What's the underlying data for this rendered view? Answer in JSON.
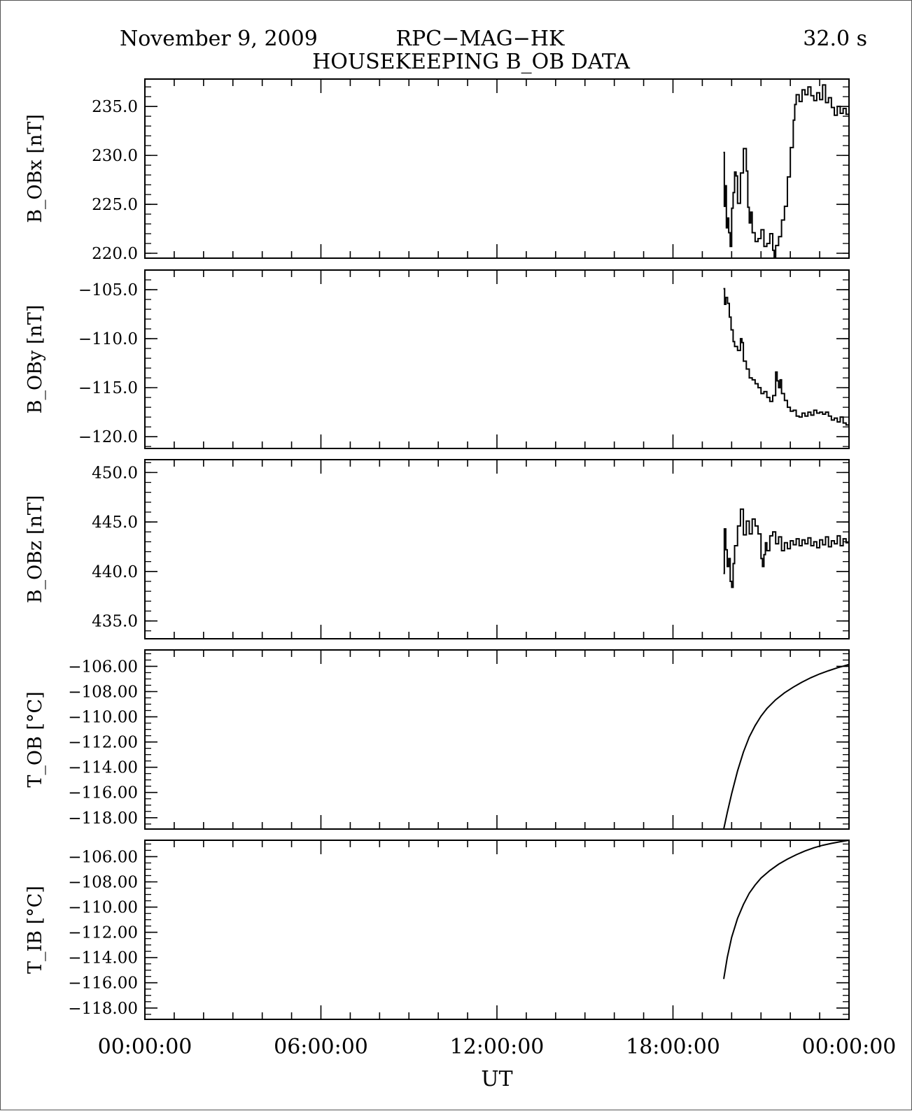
{
  "header": {
    "date": "November 9, 2009",
    "instrument": "RPC−MAG−HK",
    "resolution": "32.0 s",
    "subtitle": "HOUSEKEEPING B_OB DATA"
  },
  "chart_data": {
    "type": "line",
    "xlabel": "UT",
    "x_unit": "hours",
    "xlim": [
      0,
      24
    ],
    "x_ticks": [
      0,
      6,
      12,
      18,
      24
    ],
    "x_tick_labels": [
      "00:00:00",
      "06:00:00",
      "12:00:00",
      "18:00:00",
      "00:00:00"
    ],
    "x_minor_step": 1,
    "grid": false,
    "panels": [
      {
        "name": "bobx",
        "ylabel": "B_OBx [nT]",
        "ylim": [
          219.5,
          237.8
        ],
        "yticks": [
          220,
          225,
          230,
          235
        ],
        "ytick_labels": [
          "220.0",
          "225.0",
          "230.0",
          "235.0"
        ],
        "y_minor_step": 1,
        "style": "step",
        "series": [
          {
            "x": [
              19.72,
              19.75,
              19.78,
              19.82,
              19.86,
              19.9,
              19.95,
              20.0,
              20.05,
              20.1,
              20.15,
              20.2,
              20.3,
              20.4,
              20.5,
              20.55,
              20.6,
              20.65,
              20.7,
              20.8,
              20.9,
              21.0,
              21.1,
              21.2,
              21.3,
              21.4,
              21.45,
              21.5,
              21.6,
              21.7,
              21.8,
              21.9,
              22.0,
              22.1,
              22.15,
              22.2,
              22.3,
              22.4,
              22.5,
              22.6,
              22.7,
              22.8,
              22.9,
              23.0,
              23.1,
              23.2,
              23.3,
              23.4,
              23.5,
              23.6,
              23.7,
              23.8,
              23.9,
              24.0
            ],
            "y": [
              230.3,
              224.8,
              226.9,
              222.6,
              223.6,
              222.1,
              220.7,
              224.6,
              226.2,
              228.3,
              227.9,
              225.1,
              228.2,
              230.7,
              228.4,
              224.7,
              223.1,
              224.2,
              222.1,
              221.2,
              221.5,
              222.4,
              220.7,
              221.0,
              222.0,
              220.3,
              219.6,
              220.8,
              221.7,
              223.4,
              224.8,
              227.8,
              230.8,
              233.6,
              235.2,
              236.2,
              235.5,
              236.7,
              236.2,
              237.0,
              236.1,
              235.6,
              236.4,
              235.7,
              237.2,
              235.4,
              235.9,
              234.9,
              234.1,
              235.0,
              234.3,
              234.8,
              234.2,
              234.9
            ]
          }
        ]
      },
      {
        "name": "boby",
        "ylabel": "B_OBy [nT]",
        "ylim": [
          -121.2,
          -103.0
        ],
        "yticks": [
          -120,
          -115,
          -110,
          -105
        ],
        "ytick_labels": [
          "−120.0",
          "−115.0",
          "−110.0",
          "−105.0"
        ],
        "y_minor_step": 1,
        "style": "step",
        "series": [
          {
            "x": [
              19.72,
              19.76,
              19.8,
              19.86,
              19.92,
              19.98,
              20.05,
              20.1,
              20.2,
              20.3,
              20.35,
              20.4,
              20.5,
              20.6,
              20.7,
              20.8,
              20.9,
              21.0,
              21.1,
              21.2,
              21.3,
              21.4,
              21.5,
              21.55,
              21.6,
              21.65,
              21.7,
              21.8,
              21.9,
              22.0,
              22.1,
              22.2,
              22.3,
              22.4,
              22.5,
              22.6,
              22.7,
              22.8,
              22.9,
              23.0,
              23.1,
              23.2,
              23.3,
              23.4,
              23.5,
              23.6,
              23.7,
              23.8,
              23.9,
              24.0
            ],
            "y": [
              -104.9,
              -106.5,
              -105.8,
              -106.4,
              -107.8,
              -109.1,
              -110.3,
              -110.8,
              -111.2,
              -110.0,
              -110.4,
              -112.3,
              -113.1,
              -114.0,
              -114.2,
              -114.6,
              -115.0,
              -115.6,
              -115.4,
              -116.0,
              -116.4,
              -115.8,
              -113.4,
              -114.3,
              -115.0,
              -114.2,
              -115.6,
              -116.3,
              -117.0,
              -117.4,
              -117.3,
              -117.9,
              -118.0,
              -117.6,
              -117.9,
              -117.5,
              -117.8,
              -117.3,
              -117.6,
              -117.5,
              -117.7,
              -117.5,
              -117.9,
              -118.3,
              -118.1,
              -118.5,
              -118.0,
              -118.6,
              -118.8,
              -119.4
            ]
          }
        ]
      },
      {
        "name": "bobz",
        "ylabel": "B_OBz [nT]",
        "ylim": [
          433.2,
          451.3
        ],
        "yticks": [
          435,
          440,
          445,
          450
        ],
        "ytick_labels": [
          "435.0",
          "440.0",
          "445.0",
          "450.0"
        ],
        "y_minor_step": 1,
        "style": "step",
        "series": [
          {
            "x": [
              19.72,
              19.75,
              19.8,
              19.85,
              19.9,
              19.95,
              20.0,
              20.05,
              20.1,
              20.2,
              20.3,
              20.4,
              20.5,
              20.6,
              20.7,
              20.8,
              20.9,
              21.0,
              21.05,
              21.1,
              21.15,
              21.2,
              21.3,
              21.4,
              21.5,
              21.6,
              21.7,
              21.8,
              21.9,
              22.0,
              22.1,
              22.2,
              22.3,
              22.4,
              22.5,
              22.6,
              22.7,
              22.8,
              22.9,
              23.0,
              23.1,
              23.2,
              23.3,
              23.4,
              23.5,
              23.6,
              23.7,
              23.8,
              23.9,
              24.0
            ],
            "y": [
              439.8,
              444.3,
              442.2,
              440.5,
              441.3,
              439.0,
              438.4,
              440.8,
              442.6,
              444.6,
              446.3,
              443.7,
              445.1,
              443.8,
              445.3,
              444.6,
              443.8,
              441.3,
              440.5,
              441.7,
              442.9,
              442.1,
              443.6,
              444.0,
              442.8,
              443.5,
              442.1,
              442.9,
              442.3,
              443.1,
              442.7,
              443.3,
              442.6,
              443.2,
              442.8,
              443.4,
              442.6,
              443.0,
              442.4,
              443.2,
              442.7,
              443.5,
              442.5,
              443.1,
              442.8,
              443.6,
              442.6,
              443.3,
              442.9,
              443.1
            ]
          }
        ]
      },
      {
        "name": "tob",
        "ylabel": "T_OB [°C]",
        "ylim": [
          -118.9,
          -104.7
        ],
        "yticks": [
          -118,
          -116,
          -114,
          -112,
          -110,
          -108,
          -106
        ],
        "ytick_labels": [
          "−118.00",
          "−116.00",
          "−114.00",
          "−112.00",
          "−110.00",
          "−108.00",
          "−106.00"
        ],
        "y_minor_step": 0.5,
        "style": "line",
        "series": [
          {
            "x": [
              19.73,
              19.85,
              20.0,
              20.2,
              20.4,
              20.6,
              20.8,
              21.0,
              21.2,
              21.5,
              21.8,
              22.1,
              22.4,
              22.7,
              23.0,
              23.3,
              23.6,
              23.9,
              24.0
            ],
            "y": [
              -118.9,
              -117.6,
              -116.1,
              -114.3,
              -112.8,
              -111.6,
              -110.7,
              -109.95,
              -109.35,
              -108.65,
              -108.1,
              -107.65,
              -107.25,
              -106.9,
              -106.6,
              -106.35,
              -106.12,
              -105.92,
              -105.85
            ]
          }
        ]
      },
      {
        "name": "tib",
        "ylabel": "T_IB [°C]",
        "ylim": [
          -118.9,
          -104.7
        ],
        "yticks": [
          -118,
          -116,
          -114,
          -112,
          -110,
          -108,
          -106
        ],
        "ytick_labels": [
          "−118.00",
          "−116.00",
          "−114.00",
          "−112.00",
          "−110.00",
          "−108.00",
          "−106.00"
        ],
        "y_minor_step": 0.5,
        "style": "line",
        "series": [
          {
            "x": [
              19.73,
              19.85,
              20.0,
              20.2,
              20.4,
              20.6,
              20.8,
              21.0,
              21.3,
              21.6,
              21.9,
              22.2,
              22.5,
              22.8,
              23.1,
              23.4,
              23.7,
              24.0
            ],
            "y": [
              -115.7,
              -114.0,
              -112.4,
              -110.9,
              -109.8,
              -108.9,
              -108.25,
              -107.7,
              -107.1,
              -106.6,
              -106.2,
              -105.85,
              -105.55,
              -105.3,
              -105.1,
              -104.95,
              -104.82,
              -104.7
            ]
          }
        ]
      }
    ]
  }
}
